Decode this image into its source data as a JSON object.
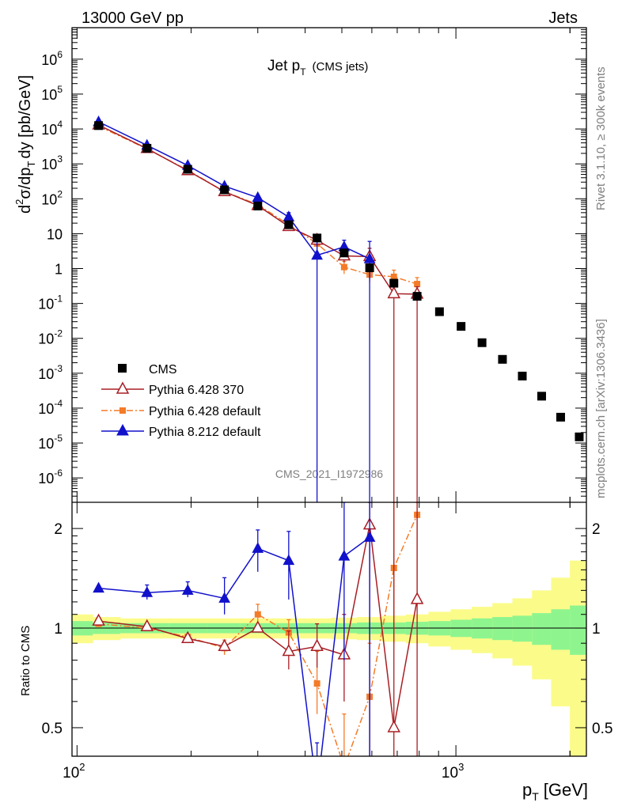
{
  "header": {
    "left": "13000 GeV pp",
    "right": "Jets"
  },
  "side_labels": {
    "rivet": "Rivet 3.1.10, ≥ 300k events",
    "mcplots": "mcplots.cern.ch [arXiv:1306.3436]"
  },
  "chart_data": {
    "type": "scatter",
    "title_main": "Jet p",
    "title_sub": "T",
    "title_suffix": "(CMS jets)",
    "watermark": "CMS_2021_I1972986",
    "xlabel_main": "p",
    "xlabel_sub": "T",
    "xlabel_unit": "[GeV]",
    "ylabel": "d²σ/dp_T dy [pb/GeV]",
    "ylabel_parts": {
      "d": "d",
      "sup2": "2",
      "sigma": "σ/dp",
      "subT": "T",
      "rest": "dy [pb/GeV]"
    },
    "ratio_ylabel": "Ratio to CMS",
    "x_log": true,
    "xlim": [
      97,
      2210
    ],
    "x_ticks": [
      {
        "value": 100,
        "base": "10",
        "exp": "2"
      },
      {
        "value": 1000,
        "base": "10",
        "exp": "3"
      }
    ],
    "main": {
      "y_log": true,
      "ylim": [
        2e-07,
        8000000.0
      ],
      "y_ticks": [
        {
          "value": 1000000.0,
          "base": "10",
          "exp": "6"
        },
        {
          "value": 100000.0,
          "base": "10",
          "exp": "5"
        },
        {
          "value": 10000.0,
          "base": "10",
          "exp": "4"
        },
        {
          "value": 1000.0,
          "base": "10",
          "exp": "3"
        },
        {
          "value": 100.0,
          "base": "10",
          "exp": "2"
        },
        {
          "value": 10,
          "base": "10",
          "exp": ""
        },
        {
          "value": 1,
          "base": "1",
          "exp": ""
        },
        {
          "value": 0.1,
          "base": "10",
          "exp": "-1"
        },
        {
          "value": 0.01,
          "base": "10",
          "exp": "-2"
        },
        {
          "value": 0.001,
          "base": "10",
          "exp": "-3"
        },
        {
          "value": 0.0001,
          "base": "10",
          "exp": "-4"
        },
        {
          "value": 1e-05,
          "base": "10",
          "exp": "-5"
        },
        {
          "value": 1e-06,
          "base": "10",
          "exp": "-6"
        }
      ],
      "series": [
        {
          "name": "CMS",
          "color": "#000000",
          "marker": "square",
          "line": "none",
          "x": [
            114,
            153,
            196,
            245,
            300,
            362,
            430,
            507,
            592,
            686,
            790,
            905,
            1032,
            1172,
            1327,
            1497,
            1684,
            1890,
            2116
          ],
          "y": [
            12500,
            2800,
            700,
            180,
            62,
            18,
            7.5,
            2.8,
            1.05,
            0.38,
            0.16,
            0.058,
            0.022,
            0.0075,
            0.0025,
            0.00083,
            0.00022,
            5.5e-05,
            1.5e-05
          ],
          "lo": [],
          "hi": []
        },
        {
          "name": "Pythia 6.428 370",
          "color": "#a81e24",
          "marker": "triangle-open",
          "line": "solid",
          "x": [
            114,
            153,
            196,
            245,
            300,
            362,
            430,
            507,
            592,
            686,
            790
          ],
          "y": [
            13000,
            2750,
            640,
            160,
            64,
            16,
            6.5,
            2.3,
            2.2,
            0.19,
            0.185
          ],
          "lo": [
            null,
            null,
            null,
            null,
            null,
            null,
            null,
            1.5,
            0.5,
            1e-09,
            1e-09
          ],
          "hi": [
            null,
            null,
            null,
            null,
            null,
            null,
            null,
            3.2,
            3.8,
            0.4,
            0.3
          ]
        },
        {
          "name": "Pythia 6.428 default",
          "color": "#f47b28",
          "marker": "square-small",
          "line": "dashdot",
          "x": [
            114,
            153,
            196,
            245,
            300,
            362,
            430,
            507,
            592,
            686,
            790
          ],
          "y": [
            12000,
            2700,
            660,
            160,
            68,
            18,
            5.2,
            1.1,
            0.67,
            0.58,
            0.36
          ],
          "lo": [
            null,
            null,
            null,
            null,
            null,
            null,
            3.5,
            0.7,
            0.4,
            0.35,
            0.2
          ],
          "hi": [
            null,
            null,
            null,
            null,
            null,
            null,
            7,
            1.6,
            1,
            0.9,
            0.55
          ]
        },
        {
          "name": "Pythia 8.212 default",
          "color": "#1111cc",
          "marker": "triangle-filled",
          "line": "solid",
          "x": [
            114,
            153,
            196,
            245,
            300,
            362,
            430,
            507,
            592
          ],
          "y": [
            16000,
            3400,
            900,
            230,
            108,
            30,
            2.4,
            4.2,
            1.9
          ],
          "lo": [
            null,
            null,
            null,
            null,
            null,
            22,
            1e-09,
            2.2,
            1e-09
          ],
          "hi": [
            null,
            null,
            null,
            null,
            null,
            40,
            7.5,
            6.5,
            6
          ]
        }
      ]
    },
    "ratio": {
      "y_log": true,
      "ylim": [
        0.41,
        2.4
      ],
      "y_ticks": [
        {
          "value": 2,
          "label": "2"
        },
        {
          "value": 1,
          "label": "1"
        },
        {
          "value": 0.5,
          "label": "0.5"
        }
      ],
      "bands": {
        "edges": [
          97,
          110,
          130,
          175,
          220,
          270,
          330,
          395,
          468,
          548,
          638,
          737,
          846,
          968,
          1101,
          1248,
          1410,
          1588,
          1784,
          1999,
          2210
        ],
        "inner": [
          0.05,
          0.04,
          0.035,
          0.035,
          0.035,
          0.035,
          0.035,
          0.035,
          0.035,
          0.04,
          0.04,
          0.045,
          0.05,
          0.06,
          0.07,
          0.08,
          0.09,
          0.11,
          0.14,
          0.17
        ],
        "outer": [
          0.1,
          0.08,
          0.07,
          0.07,
          0.07,
          0.07,
          0.07,
          0.07,
          0.075,
          0.08,
          0.09,
          0.1,
          0.12,
          0.14,
          0.16,
          0.19,
          0.23,
          0.3,
          0.42,
          0.6
        ],
        "inner_color": "#8ef58e",
        "outer_color": "#fbfb8a"
      },
      "series": [
        {
          "name": "Pythia 6.428 370",
          "x": [
            114,
            153,
            196,
            245,
            300,
            362,
            430,
            507,
            592,
            686,
            790
          ],
          "y": [
            1.05,
            1.01,
            0.93,
            0.88,
            1.0,
            0.85,
            0.88,
            0.83,
            2.05,
            0.5,
            1.22
          ],
          "lo": [
            null,
            null,
            null,
            null,
            null,
            0.75,
            0.76,
            0.6,
            0.3,
            0.3,
            0.3
          ],
          "hi": [
            null,
            null,
            null,
            null,
            null,
            0.98,
            1.03,
            1.1,
            2.4,
            2.4,
            2.4
          ]
        },
        {
          "name": "Pythia 6.428 default",
          "x": [
            114,
            153,
            196,
            245,
            300,
            362,
            430,
            507,
            592,
            686,
            790
          ],
          "y": [
            1.03,
            1.0,
            0.94,
            0.87,
            1.1,
            0.97,
            0.68,
            0.38,
            0.62,
            1.52,
            2.2
          ],
          "lo": [
            null,
            null,
            null,
            0.83,
            1.02,
            0.88,
            0.55,
            0.3,
            0.3,
            0.9,
            1.2
          ],
          "hi": [
            null,
            null,
            null,
            0.92,
            1.18,
            1.06,
            0.85,
            0.55,
            0.9,
            2.4,
            2.4
          ]
        },
        {
          "name": "Pythia 8.212 default",
          "x": [
            114,
            153,
            196,
            245,
            300,
            362,
            430,
            507,
            592
          ],
          "y": [
            1.32,
            1.28,
            1.3,
            1.23,
            1.74,
            1.6,
            0.32,
            1.65,
            1.88
          ],
          "lo": [
            null,
            1.22,
            1.24,
            1.1,
            1.48,
            1.22,
            0.2,
            0.8,
            0.3
          ],
          "hi": [
            null,
            1.35,
            1.38,
            1.42,
            1.98,
            1.96,
            0.45,
            2.4,
            2.4
          ]
        }
      ]
    }
  }
}
